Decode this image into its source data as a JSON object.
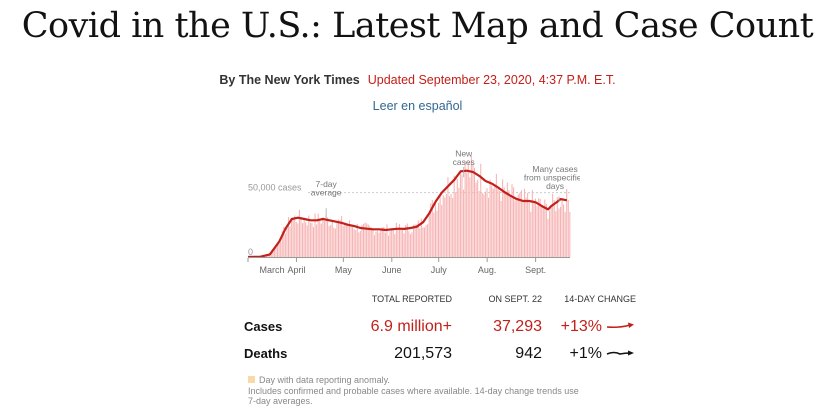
{
  "headline": "Covid in the U.S.: Latest Map and Case Count",
  "byline": {
    "author": "By The New York Times",
    "updated": "Updated September 23, 2020, 4:37 P.M. E.T."
  },
  "language_link": "Leer en español",
  "colors": {
    "accent_red": "#c2201a",
    "bar_pink": "#f7b3b3",
    "link_blue": "#326891"
  },
  "chart_data": {
    "type": "bar",
    "title": "",
    "xlabel": "",
    "ylabel": "cases",
    "ylim": [
      0,
      80000
    ],
    "y_ticks": [
      {
        "value": 50000,
        "label": "50,000 cases"
      },
      {
        "value": 0,
        "label": "0"
      }
    ],
    "x_ticks": [
      {
        "day": 0,
        "label": "March"
      },
      {
        "day": 31,
        "label": "April"
      },
      {
        "day": 61,
        "label": "May"
      },
      {
        "day": 92,
        "label": "June"
      },
      {
        "day": 122,
        "label": "July"
      },
      {
        "day": 153,
        "label": "Aug."
      },
      {
        "day": 184,
        "label": "Sept."
      }
    ],
    "start_date": "March 1",
    "series": [
      {
        "name": "7-day average",
        "style": "line",
        "points": [
          [
            0,
            0
          ],
          [
            8,
            200
          ],
          [
            14,
            2000
          ],
          [
            20,
            12000
          ],
          [
            24,
            22000
          ],
          [
            28,
            29500
          ],
          [
            32,
            30500
          ],
          [
            36,
            29500
          ],
          [
            40,
            28500
          ],
          [
            44,
            28500
          ],
          [
            48,
            29500
          ],
          [
            52,
            28500
          ],
          [
            56,
            27500
          ],
          [
            60,
            26500
          ],
          [
            64,
            25000
          ],
          [
            68,
            24000
          ],
          [
            72,
            22500
          ],
          [
            76,
            22000
          ],
          [
            80,
            21500
          ],
          [
            84,
            21500
          ],
          [
            88,
            21000
          ],
          [
            92,
            21500
          ],
          [
            96,
            22000
          ],
          [
            100,
            21800
          ],
          [
            104,
            22500
          ],
          [
            108,
            23500
          ],
          [
            112,
            27000
          ],
          [
            116,
            34000
          ],
          [
            120,
            43000
          ],
          [
            124,
            50000
          ],
          [
            128,
            55000
          ],
          [
            132,
            60000
          ],
          [
            136,
            66500
          ],
          [
            140,
            67000
          ],
          [
            144,
            66000
          ],
          [
            148,
            63000
          ],
          [
            152,
            59000
          ],
          [
            156,
            57000
          ],
          [
            160,
            54000
          ],
          [
            164,
            50500
          ],
          [
            168,
            47500
          ],
          [
            172,
            45000
          ],
          [
            176,
            43500
          ],
          [
            180,
            43500
          ],
          [
            184,
            42500
          ],
          [
            188,
            39500
          ],
          [
            192,
            37000
          ],
          [
            194,
            39500
          ],
          [
            198,
            43000
          ],
          [
            200,
            45000
          ],
          [
            204,
            44000
          ]
        ]
      },
      {
        "name": "New cases",
        "style": "bars",
        "noise_seed": 7,
        "noise_amplitude": 0.22
      }
    ],
    "annotations": [
      {
        "lines": [
          "7-day",
          "average"
        ],
        "anchor_day": 50,
        "anchor_value": 29500,
        "label_value": 48000
      },
      {
        "lines": [
          "New",
          "cases"
        ],
        "anchor_day": 138,
        "anchor_value": 70000,
        "label_value": 72000
      },
      {
        "lines": [
          "Many cases",
          "from unspecified",
          "days"
        ],
        "anchor_day": 199,
        "anchor_value": 47000,
        "label_value": 60000
      }
    ]
  },
  "stats": {
    "headers": {
      "total": "TOTAL REPORTED",
      "day": "ON SEPT. 22",
      "change": "14-DAY CHANGE"
    },
    "rows": [
      {
        "label": "Cases",
        "total": "6.9 million+",
        "day": "37,293",
        "change": "+13%"
      },
      {
        "label": "Deaths",
        "total": "201,573",
        "day": "942",
        "change": "+1%"
      }
    ]
  },
  "footnotes": {
    "legend": "Day with data reporting anomaly.",
    "note": "Includes confirmed and probable cases where available. 14-day change trends use 7-day averages."
  }
}
